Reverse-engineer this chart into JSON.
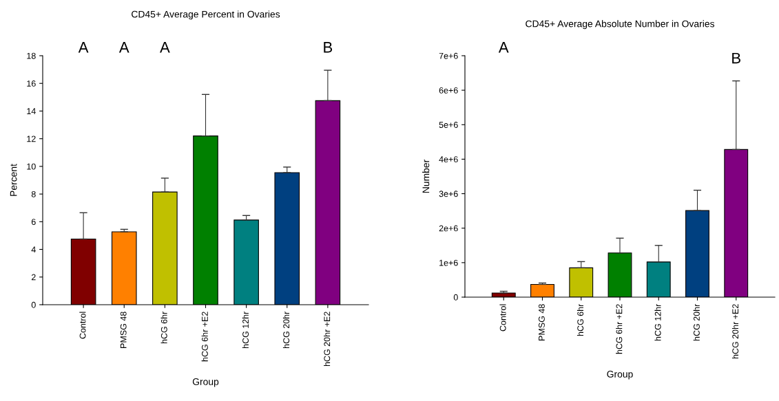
{
  "chart_data": [
    {
      "type": "bar",
      "title": "CD45+ Average Percent in Ovaries",
      "xlabel": "Group",
      "ylabel": "Percent",
      "categories": [
        "Control",
        "PMSG 48",
        "hCG 6hr",
        "hCG 6hr +E2",
        "hCG 12hr",
        "hCG 20hr",
        "hCG 20hr +E2"
      ],
      "values": [
        4.75,
        5.27,
        8.15,
        12.2,
        6.12,
        9.55,
        14.75
      ],
      "errors": [
        [
          4.75,
          6.65
        ],
        [
          5.27,
          5.45
        ],
        [
          8.15,
          9.15
        ],
        [
          12.2,
          15.2
        ],
        [
          6.12,
          6.45
        ],
        [
          9.55,
          9.95
        ],
        [
          14.75,
          16.95
        ]
      ],
      "colors": [
        "#800000",
        "#ff8000",
        "#c0c000",
        "#008000",
        "#008080",
        "#004080",
        "#800080"
      ],
      "ylim": [
        0,
        18
      ],
      "yticks": [
        0,
        2,
        4,
        6,
        8,
        10,
        12,
        14,
        16,
        18
      ],
      "grid": false,
      "annotations": [
        "A",
        "A",
        "A",
        "B"
      ]
    },
    {
      "type": "bar",
      "title": "CD45+ Average Absolute Number in Ovaries",
      "xlabel": "Group",
      "ylabel": "Number",
      "categories": [
        "Control",
        "PMSG 48",
        "hCG 6hr",
        "hCG 6hr +E2",
        "hCG 12hr",
        "hCG 20hr",
        "hCG 20hr +E2"
      ],
      "values": [
        120000,
        370000,
        850000,
        1280000,
        1020000,
        2510000,
        4280000
      ],
      "errors": [
        [
          120000,
          170000
        ],
        [
          370000,
          410000
        ],
        [
          850000,
          1030000
        ],
        [
          1280000,
          1710000
        ],
        [
          1020000,
          1500000
        ],
        [
          2510000,
          3100000
        ],
        [
          4280000,
          6270000
        ]
      ],
      "colors": [
        "#800000",
        "#ff8000",
        "#c0c000",
        "#008000",
        "#008080",
        "#004080",
        "#800080"
      ],
      "ylim": [
        0,
        7000000
      ],
      "yticks": [
        0,
        {
          "value": 1000000,
          "label": "1e+6"
        },
        {
          "value": 2000000,
          "label": "2e+6"
        },
        {
          "value": 3000000,
          "label": "3e+6"
        },
        {
          "value": 4000000,
          "label": "4e+6"
        },
        {
          "value": 5000000,
          "label": "5e+6"
        },
        {
          "value": 6000000,
          "label": "6e+6"
        },
        {
          "value": 7000000,
          "label": "7e+6"
        }
      ],
      "grid": false,
      "annotations": [
        "A",
        "B"
      ]
    }
  ]
}
